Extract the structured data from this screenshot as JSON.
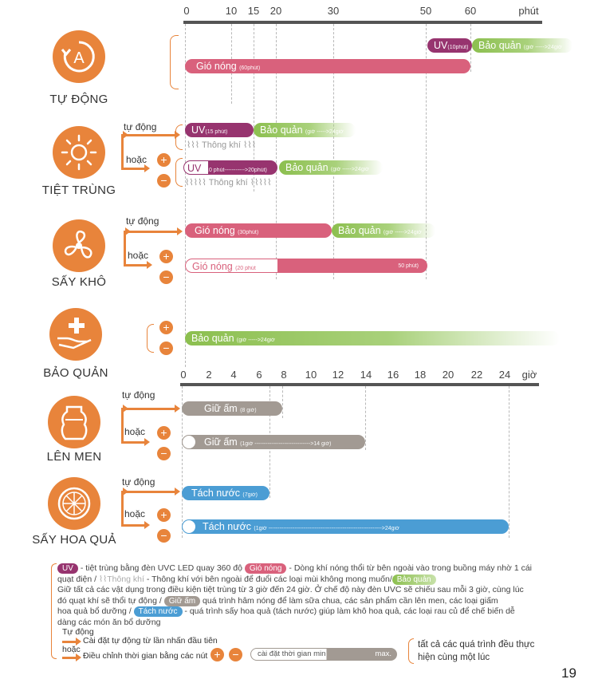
{
  "page_number": "19",
  "top_axis": {
    "unit": "phút",
    "ticks": [
      "0",
      "10",
      "15",
      "20",
      "30",
      "50",
      "60"
    ]
  },
  "bottom_axis": {
    "unit": "giờ",
    "ticks": [
      "0",
      "2",
      "4",
      "6",
      "8",
      "10",
      "12",
      "14",
      "16",
      "18",
      "20",
      "22",
      "24"
    ]
  },
  "modes": {
    "auto": {
      "title": "TỰ ĐỘNG",
      "bars": {
        "uv": "UV",
        "uv_small": "(10phút)",
        "store": "Bảo quản",
        "store_small": "(giờ ----->24giờ",
        "hot": "Gió nóng",
        "hot_small": "(60phút)"
      }
    },
    "sterilize": {
      "title": "TIỆT TRÙNG",
      "auto_label": "tự động",
      "or_label": "hoặc",
      "uv1": "UV",
      "uv1_small": "(15 phút)",
      "store": "Bảo quản",
      "store_small": "(giờ ----->24giờ",
      "vent": "Thông khí",
      "uv2": "UV",
      "uv2_small": "(10 phút----------->20phút)"
    },
    "dry": {
      "title": "SẤY KHÔ",
      "auto_label": "tự động",
      "or_label": "hoặc",
      "hot1": "Gió nóng",
      "hot1_small": "(30phút)",
      "store": "Bảo quản",
      "store_small": "(giờ ----->24giờ",
      "hot2": "Gió nóng",
      "hot2_small": "(20 phút",
      "hot2_end": "50 phút)"
    },
    "preserve": {
      "title": "BẢO QUẢN",
      "store": "Bảo quản",
      "store_small": "(giờ ----->24giờ"
    },
    "ferment": {
      "title": "LÊN MEN",
      "auto_label": "tự động",
      "or_label": "hoặc",
      "warm1": "Giữ ấm",
      "warm1_small": "(8 giờ)",
      "warm2": "Giữ ấm",
      "warm2_small": "(1giờ ------------------------------>14 giờ)"
    },
    "fruit": {
      "title": "SẤY HOA QUẢ",
      "auto_label": "tự động",
      "or_label": "hoặc",
      "dry1": "Tách nước",
      "dry1_small": "(7giờ)",
      "dry2": "Tách nước",
      "dry2_small": "(1giờ ------------------------------------------------------------->24giờ"
    }
  },
  "legend": {
    "uv_chip": "UV",
    "uv_text": "- tiệt trùng bằng đèn UVC LED quay 360 độ",
    "hot_chip": "Gió nóng",
    "hot_text": "- Dòng khí nóng thổi từ bên ngoài vào trong buồng máy nhờ 1 cái",
    "line2_a": "quạt điện /",
    "vent_chip": "Thông khí",
    "line2_b": "- Thông khí với bên ngoài để đuổi các loại mùi không mong muốn/",
    "store_chip": "Bảo quản",
    "line3": "Giữ tất cả các vật dụng trong điều kiện tiệt trùng từ 3 giờ đến 24 giờ. Ở chế độ này đèn UVC sẽ chiếu sau mỗi 3 giờ, cùng lúc",
    "line4_a": "đó quạt khí sẽ thổi tự động /",
    "warm_chip": "Giữ ấm",
    "line4_b": "quá trình hâm nóng để làm sữa chua, các sản phẩm cần lên men, các loại giấm",
    "line5_a": "hoa quả bổ dưỡng /",
    "dry_chip": "Tách nước",
    "line5_b": "- quá trình sấy hoa quả (tách nước) giúp làm khô hoa quả, các loại rau củ để chế biến dễ",
    "line6": "dàng các món ăn bổ dưỡng",
    "auto_word": "Tự động",
    "auto_desc": "Cài đặt tự động từ lần nhấn đầu tiên",
    "or_word": "hoặc",
    "adjust_desc": "Điều chỉnh thời gian bằng các nút",
    "time_chip": "cài đặt thời gian min",
    "time_max": "max.",
    "simul": "tất cả các quá trình đều thực hiện cùng một lúc"
  }
}
